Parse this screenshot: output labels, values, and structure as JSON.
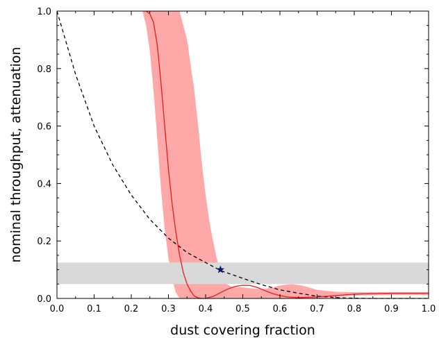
{
  "chart_data": {
    "type": "line",
    "title": "",
    "xlabel": "dust covering fraction",
    "ylabel": "nominal throughput, attenuation",
    "xlim": [
      0.0,
      1.0
    ],
    "ylim": [
      0.0,
      1.0
    ],
    "grid": false,
    "x_ticks": [
      "0.0",
      "0.1",
      "0.2",
      "0.3",
      "0.4",
      "0.5",
      "0.6",
      "0.7",
      "0.8",
      "0.9",
      "1.0"
    ],
    "y_ticks": [
      "0.0",
      "0.2",
      "0.4",
      "0.6",
      "0.8",
      "1.0"
    ],
    "colors": {
      "throughput_line": "#e41a1c",
      "throughput_band": "#ffa8a8",
      "attenuation_line": "#000000",
      "target_band": "#d9d9d9",
      "marker": "#0a1a6b"
    },
    "shaded_horizontal_band": {
      "y": [
        0.05,
        0.125
      ],
      "color": "#d9d9d9"
    },
    "series": [
      {
        "style": "dashed",
        "color": "#000000",
        "points": [
          [
            0.0,
            1.0
          ],
          [
            0.05,
            0.78
          ],
          [
            0.1,
            0.6
          ],
          [
            0.15,
            0.465
          ],
          [
            0.2,
            0.36
          ],
          [
            0.25,
            0.275
          ],
          [
            0.3,
            0.21
          ],
          [
            0.35,
            0.16
          ],
          [
            0.4,
            0.125
          ],
          [
            0.44,
            0.097
          ],
          [
            0.5,
            0.07
          ],
          [
            0.55,
            0.048
          ],
          [
            0.6,
            0.03
          ],
          [
            0.65,
            0.018
          ],
          [
            0.7,
            0.008
          ],
          [
            0.75,
            0.003
          ],
          [
            0.8,
            0.001
          ],
          [
            0.85,
            0.0
          ],
          [
            1.0,
            0.0
          ]
        ]
      },
      {
        "style": "solid",
        "color": "#e41a1c",
        "points": [
          [
            0.24,
            1.0
          ],
          [
            0.25,
            0.99
          ],
          [
            0.26,
            0.96
          ],
          [
            0.27,
            0.88
          ],
          [
            0.28,
            0.75
          ],
          [
            0.29,
            0.6
          ],
          [
            0.3,
            0.45
          ],
          [
            0.31,
            0.33
          ],
          [
            0.32,
            0.23
          ],
          [
            0.33,
            0.15
          ],
          [
            0.34,
            0.09
          ],
          [
            0.35,
            0.05
          ],
          [
            0.36,
            0.025
          ],
          [
            0.37,
            0.008
          ],
          [
            0.38,
            0.002
          ],
          [
            0.39,
            0.0
          ],
          [
            0.4,
            0.0
          ],
          [
            0.42,
            0.007
          ],
          [
            0.44,
            0.02
          ],
          [
            0.46,
            0.033
          ],
          [
            0.48,
            0.042
          ],
          [
            0.5,
            0.046
          ],
          [
            0.52,
            0.045
          ],
          [
            0.54,
            0.038
          ],
          [
            0.56,
            0.027
          ],
          [
            0.58,
            0.017
          ],
          [
            0.6,
            0.01
          ],
          [
            0.62,
            0.005
          ],
          [
            0.65,
            0.003
          ],
          [
            0.7,
            0.005
          ],
          [
            0.75,
            0.01
          ],
          [
            0.8,
            0.015
          ],
          [
            0.85,
            0.017
          ],
          [
            0.9,
            0.018
          ],
          [
            1.0,
            0.018
          ]
        ]
      }
    ],
    "uncertainty_band": {
      "color": "#ffa8a8",
      "upper": [
        [
          0.19,
          1.0
        ],
        [
          0.33,
          1.0
        ],
        [
          0.35,
          0.9
        ],
        [
          0.37,
          0.72
        ],
        [
          0.38,
          0.6
        ],
        [
          0.39,
          0.47
        ],
        [
          0.4,
          0.36
        ],
        [
          0.41,
          0.27
        ],
        [
          0.42,
          0.2
        ],
        [
          0.43,
          0.14
        ],
        [
          0.44,
          0.09
        ],
        [
          0.45,
          0.055
        ],
        [
          0.47,
          0.04
        ],
        [
          0.5,
          0.038
        ],
        [
          0.55,
          0.032
        ],
        [
          0.58,
          0.038
        ],
        [
          0.6,
          0.045
        ],
        [
          0.63,
          0.05
        ],
        [
          0.66,
          0.045
        ],
        [
          0.7,
          0.03
        ],
        [
          0.75,
          0.023
        ],
        [
          0.8,
          0.022
        ],
        [
          0.9,
          0.022
        ],
        [
          1.0,
          0.022
        ]
      ],
      "lower": [
        [
          1.0,
          0.012
        ],
        [
          0.9,
          0.012
        ],
        [
          0.8,
          0.01
        ],
        [
          0.75,
          0.005
        ],
        [
          0.7,
          0.0
        ],
        [
          0.33,
          0.0
        ],
        [
          0.32,
          0.02
        ],
        [
          0.31,
          0.07
        ],
        [
          0.3,
          0.14
        ],
        [
          0.29,
          0.24
        ],
        [
          0.28,
          0.38
        ],
        [
          0.27,
          0.55
        ],
        [
          0.26,
          0.72
        ],
        [
          0.25,
          0.86
        ],
        [
          0.24,
          0.95
        ],
        [
          0.23,
          1.0
        ]
      ]
    },
    "marker": {
      "x": 0.44,
      "y": 0.1,
      "symbol": "star",
      "color": "#0a1a6b"
    }
  }
}
